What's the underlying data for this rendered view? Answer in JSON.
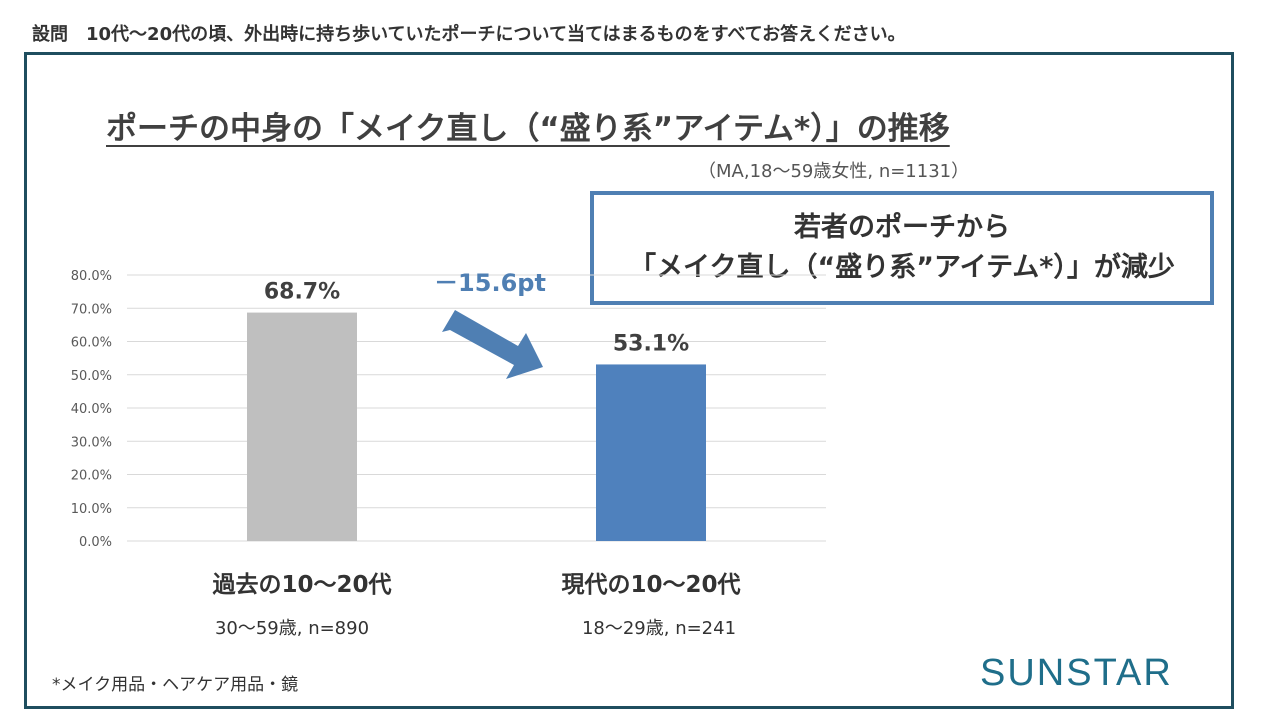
{
  "question": {
    "label": "設問",
    "text": "10代～20代の頃、外出時に持ち歩いていたポーチについて当てはまるものをすべてお答えください。"
  },
  "title": "ポーチの中身の「メイク直し（“盛り系”アイテム*）」の推移",
  "sample_note": "（MA,18～59歳女性, n=1131）",
  "callout": {
    "line1": "若者のポーチから",
    "line2": "「メイク直し（“盛り系”アイテム*）」が減少"
  },
  "footnote": "*メイク用品・ヘアケア用品・鏡",
  "logo": "SUNSTAR",
  "colors": {
    "frame": "#1f4e5f",
    "past_bar": "#bfbfbf",
    "present_bar": "#4f81bd",
    "arrow": "#4f7fb3",
    "logo": "#1f6e8a"
  },
  "chart_data": {
    "type": "bar",
    "categories": [
      "過去の10～20代",
      "現代の10～20代"
    ],
    "category_subtitles": [
      "30～59歳, n=890",
      "18～29歳, n=241"
    ],
    "values": [
      68.7,
      53.1
    ],
    "data_labels": [
      "68.7%",
      "53.1%"
    ],
    "ylim": [
      0,
      80
    ],
    "yticks": [
      0,
      10,
      20,
      30,
      40,
      50,
      60,
      70,
      80
    ],
    "ytick_labels": [
      "0.0%",
      "10.0%",
      "20.0%",
      "30.0%",
      "40.0%",
      "50.0%",
      "60.0%",
      "70.0%",
      "80.0%"
    ],
    "grid": true,
    "annotation": {
      "text": "－15.6pt",
      "value": -15.6
    }
  }
}
